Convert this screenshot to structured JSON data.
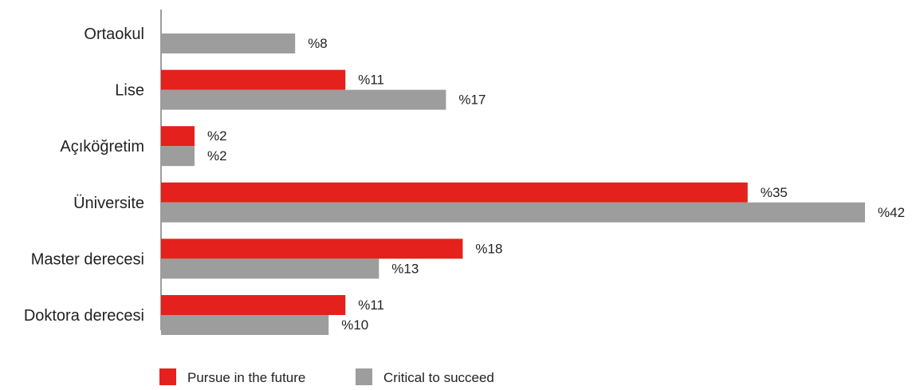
{
  "chart_data": {
    "type": "bar",
    "orientation": "horizontal",
    "categories": [
      "Ortaokul",
      "Lise",
      "Açıköğretim",
      "Üniversite",
      "Master derecesi",
      "Doktora derecesi"
    ],
    "series": [
      {
        "name": "Pursue in the future",
        "color": "#e4211c",
        "values": [
          null,
          11,
          2,
          35,
          18,
          11
        ],
        "labels": [
          "",
          "%11",
          "%2",
          "%35",
          "%18",
          "%11"
        ]
      },
      {
        "name": "Critical to succeed",
        "color": "#9d9d9d",
        "values": [
          8,
          17,
          2,
          42,
          13,
          10
        ],
        "labels": [
          "%8",
          "%17",
          "%2",
          "%42",
          "%13",
          "%10"
        ]
      }
    ],
    "xlim": [
      0,
      42
    ],
    "grid": false,
    "legend_position": "bottom-center",
    "axis_color": "#9d9d9d"
  }
}
